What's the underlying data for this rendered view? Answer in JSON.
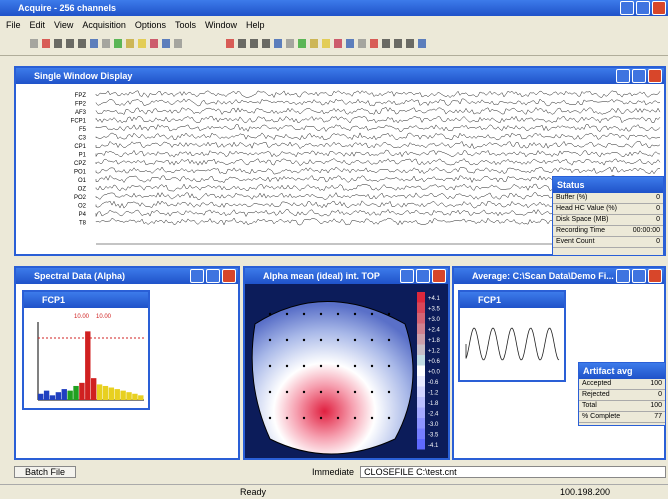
{
  "app_title": "Acquire - 256 channels",
  "menu": [
    "File",
    "Edit",
    "View",
    "Acquisition",
    "Options",
    "Tools",
    "Window",
    "Help"
  ],
  "eeg_window": {
    "title": "Single Window Display",
    "channels": [
      "FPZ",
      "FP2",
      "AF3",
      "FCP1",
      "F5",
      "C3",
      "CP1",
      "P1",
      "CPZ",
      "PO1",
      "O1",
      "OZ",
      "PO2",
      "O2",
      "P4",
      "T8"
    ]
  },
  "status": {
    "title": "Status",
    "rows": [
      [
        "Buffer (%)",
        "0"
      ],
      [
        "Head HC Value (%)",
        "0"
      ],
      [
        "Disk Space (MB)",
        "0"
      ],
      [
        "Recording Time",
        "00:00:00"
      ],
      [
        "Event Count",
        "0"
      ]
    ]
  },
  "spectral_window": {
    "title": "Spectral Data (Alpha)",
    "inner_title": "FCP1",
    "peak_labels": [
      "10.00",
      "10.00"
    ],
    "ylim": [
      0,
      50
    ],
    "values": [
      4,
      6,
      3,
      5,
      7,
      6,
      9,
      11,
      44,
      14,
      10,
      9,
      8,
      7,
      6,
      5,
      4,
      3
    ],
    "colors": [
      "#2040c0",
      "#2040c0",
      "#2040c0",
      "#2040c0",
      "#2040c0",
      "#20a020",
      "#20a020",
      "#d02020",
      "#d02020",
      "#d02020",
      "#e8d020",
      "#e8d020",
      "#e8d020",
      "#e8d020",
      "#e8d020",
      "#e8d020",
      "#e8d020",
      "#e8d020"
    ]
  },
  "topo_window": {
    "title": "Alpha mean (ideal) int. TOP",
    "scale": [
      "+4.1",
      "+3.5",
      "+3.0",
      "+2.4",
      "+1.8",
      "+1.2",
      "+0.6",
      "+0.0",
      "-0.6",
      "-1.2",
      "-1.8",
      "-2.4",
      "-3.0",
      "-3.5",
      "-4.1"
    ]
  },
  "average_window": {
    "title": "Average: C:\\Scan Data\\Demo Fi...",
    "inner_title": "FCP1"
  },
  "artifact": {
    "title": "Artifact avg",
    "rows": [
      [
        "Accepted",
        "100"
      ],
      [
        "Rejected",
        "0"
      ],
      [
        "Total",
        "100"
      ],
      [
        "% Complete",
        "77"
      ]
    ]
  },
  "command_bar": {
    "button": "Batch File",
    "label": "Immediate",
    "command": "CLOSEFILE C:\\test.cnt"
  },
  "statusbar": {
    "left": "Ready",
    "right": "100.198.200"
  }
}
